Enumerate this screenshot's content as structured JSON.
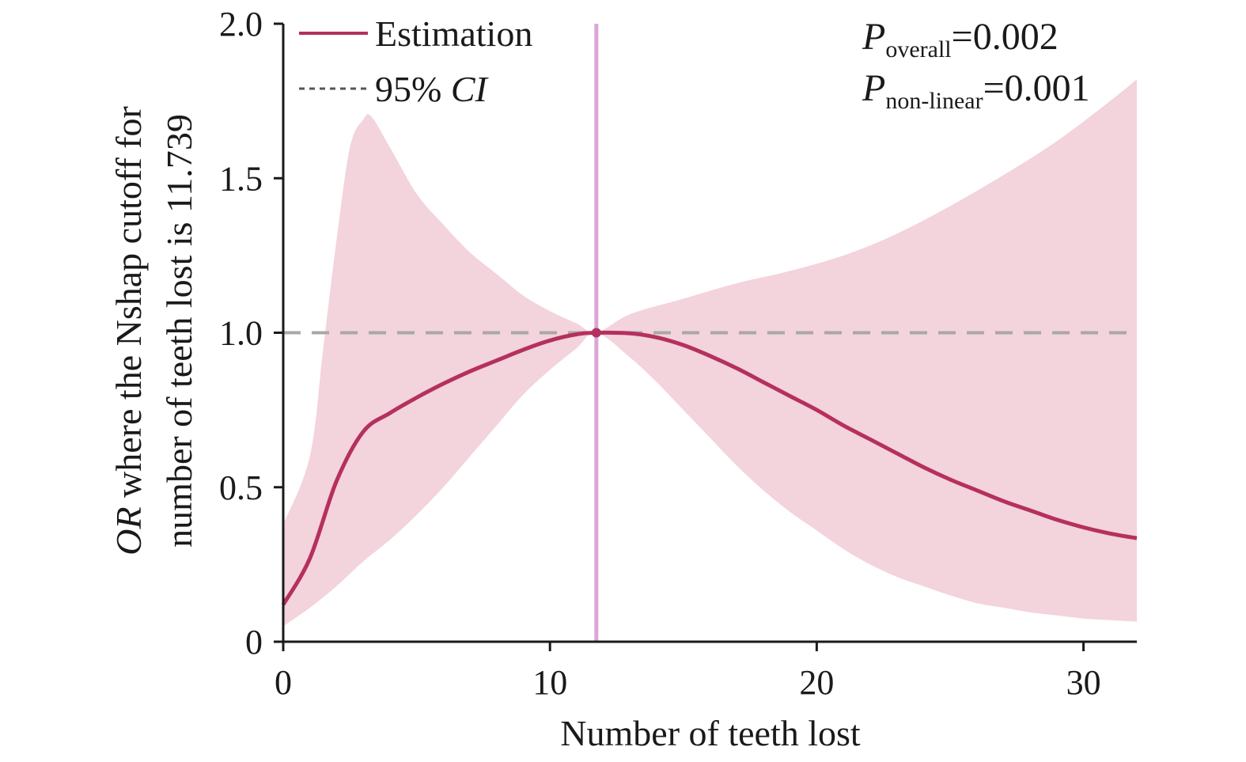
{
  "chart_data": {
    "type": "line",
    "title": "",
    "xlabel": "Number of teeth lost",
    "ylabel_prefix": "OR",
    "ylabel_rest_line1": " where the Nshap cutoff for",
    "ylabel_line2": "number of teeth lost is 11.739",
    "xlim": [
      0,
      32
    ],
    "ylim": [
      0,
      2.0
    ],
    "x_ticks": [
      0,
      10,
      20,
      30
    ],
    "x_tick_labels": [
      "0",
      "10",
      "20",
      "30"
    ],
    "y_ticks": [
      0,
      0.5,
      1.0,
      1.5,
      2.0
    ],
    "y_tick_labels": [
      "0",
      "0.5",
      "1.0",
      "1.5",
      "2.0"
    ],
    "reference_line_y": 1.0,
    "cutoff_x": 11.739,
    "legend": {
      "position": "top-left",
      "entries": [
        {
          "label": "Estimation",
          "style": "solid",
          "color": "#b5305f"
        },
        {
          "label_prefix": "95% ",
          "label_italic": "CI",
          "style": "dashed",
          "color": "#555555"
        }
      ]
    },
    "annotations": [
      {
        "main": "P",
        "sub": "overall",
        "value": "=0.002"
      },
      {
        "main": "P",
        "sub": "non-linear",
        "value": "=0.001"
      }
    ],
    "colors": {
      "estimate": "#b5305f",
      "ci_band": "#f3d3dc",
      "cutoff_line": "#dba6d6",
      "reference": "#a8a8a8"
    },
    "series": [
      {
        "name": "Estimation",
        "x": [
          0,
          1,
          2,
          3,
          4,
          5,
          6,
          7,
          8,
          9,
          10,
          11,
          11.739,
          13,
          14,
          15,
          16,
          17,
          18,
          19,
          20,
          21,
          22,
          23,
          24,
          25,
          26,
          27,
          28,
          29,
          30,
          31,
          32
        ],
        "y": [
          0.12,
          0.27,
          0.52,
          0.68,
          0.74,
          0.79,
          0.835,
          0.875,
          0.91,
          0.945,
          0.975,
          0.995,
          1.0,
          0.998,
          0.985,
          0.96,
          0.925,
          0.885,
          0.84,
          0.795,
          0.75,
          0.7,
          0.655,
          0.61,
          0.565,
          0.525,
          0.49,
          0.455,
          0.425,
          0.395,
          0.37,
          0.35,
          0.335
        ]
      },
      {
        "name": "95% CI upper",
        "x": [
          0,
          1,
          1.5,
          2,
          2.5,
          3,
          3.3,
          4,
          5,
          6,
          7,
          8,
          9,
          10,
          11,
          11.739,
          13,
          15,
          17,
          19,
          21,
          23,
          25,
          27,
          29,
          31,
          32
        ],
        "y": [
          0.38,
          0.6,
          0.95,
          1.3,
          1.6,
          1.69,
          1.7,
          1.6,
          1.45,
          1.35,
          1.26,
          1.19,
          1.12,
          1.07,
          1.03,
          1.0,
          1.06,
          1.11,
          1.16,
          1.2,
          1.25,
          1.32,
          1.41,
          1.51,
          1.62,
          1.75,
          1.82
        ]
      },
      {
        "name": "95% CI lower",
        "x": [
          0,
          1,
          2,
          3,
          4,
          5,
          6,
          7,
          8,
          9,
          10,
          11,
          11.739,
          13,
          14,
          15,
          16,
          17,
          18,
          19,
          20,
          21,
          22,
          23,
          24,
          25,
          26,
          27,
          28,
          29,
          30,
          31,
          32
        ],
        "y": [
          0.05,
          0.11,
          0.18,
          0.26,
          0.33,
          0.41,
          0.5,
          0.6,
          0.7,
          0.8,
          0.88,
          0.95,
          1.0,
          0.92,
          0.84,
          0.75,
          0.66,
          0.57,
          0.49,
          0.42,
          0.36,
          0.3,
          0.25,
          0.21,
          0.18,
          0.15,
          0.125,
          0.11,
          0.095,
          0.085,
          0.075,
          0.07,
          0.065
        ]
      }
    ]
  }
}
